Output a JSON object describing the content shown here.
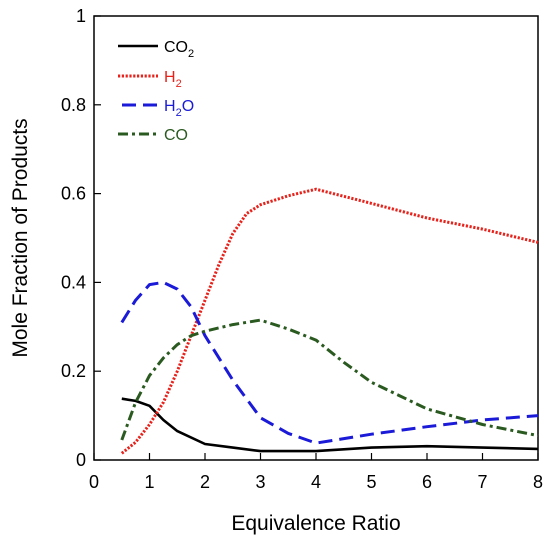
{
  "chart_data": {
    "type": "line",
    "title": "",
    "xlabel": "Equivalence Ratio",
    "ylabel": "Mole Fraction of Products",
    "xlim": [
      0,
      8
    ],
    "ylim": [
      0,
      1
    ],
    "xticks": [
      0,
      1,
      2,
      3,
      4,
      5,
      6,
      7,
      8
    ],
    "yticks": [
      0,
      0.2,
      0.4,
      0.6,
      0.8,
      1
    ],
    "ytick_labels": [
      "0",
      "0.2",
      "0.4",
      "0.6",
      "0.8",
      "1"
    ],
    "grid": false,
    "legend": "top-left",
    "series": [
      {
        "name": "CO2",
        "legend_main": "CO",
        "legend_sub": "2",
        "color": "#000000",
        "dash": "solid",
        "x": [
          0.5,
          0.75,
          1.0,
          1.25,
          1.5,
          2.0,
          2.5,
          3.0,
          3.5,
          4.0,
          5.0,
          6.0,
          7.0,
          8.0
        ],
        "y": [
          0.138,
          0.133,
          0.122,
          0.09,
          0.065,
          0.036,
          0.028,
          0.02,
          0.02,
          0.02,
          0.028,
          0.031,
          0.028,
          0.025
        ]
      },
      {
        "name": "H2",
        "legend_main": "H",
        "legend_sub": "2",
        "color": "#e8221b",
        "dash": "dotted",
        "x": [
          0.5,
          0.75,
          1.0,
          1.25,
          1.5,
          1.75,
          2.0,
          2.25,
          2.5,
          2.75,
          3.0,
          3.5,
          4.0,
          5.0,
          6.0,
          7.0,
          8.0
        ],
        "y": [
          0.015,
          0.04,
          0.08,
          0.13,
          0.2,
          0.28,
          0.36,
          0.44,
          0.51,
          0.555,
          0.575,
          0.595,
          0.61,
          0.578,
          0.545,
          0.52,
          0.49
        ]
      },
      {
        "name": "H2O",
        "legend_main": "H",
        "legend_sub": "2",
        "legend_tail": "O",
        "color": "#1a1ad8",
        "dash": "dashed",
        "x": [
          0.5,
          0.75,
          1.0,
          1.25,
          1.5,
          1.75,
          2.0,
          2.5,
          3.0,
          3.5,
          4.0,
          5.0,
          6.0,
          7.0,
          8.0
        ],
        "y": [
          0.31,
          0.36,
          0.395,
          0.4,
          0.385,
          0.345,
          0.28,
          0.18,
          0.095,
          0.06,
          0.038,
          0.058,
          0.075,
          0.09,
          0.1
        ]
      },
      {
        "name": "CO",
        "legend_main": "CO",
        "color": "#2a5a20",
        "dash": "dashdot",
        "x": [
          0.5,
          0.75,
          1.0,
          1.25,
          1.5,
          1.75,
          2.0,
          2.5,
          3.0,
          3.5,
          4.0,
          4.5,
          5.0,
          5.5,
          6.0,
          7.0,
          8.0
        ],
        "y": [
          0.045,
          0.13,
          0.19,
          0.23,
          0.26,
          0.28,
          0.29,
          0.305,
          0.315,
          0.295,
          0.27,
          0.22,
          0.175,
          0.145,
          0.115,
          0.08,
          0.055
        ]
      }
    ]
  }
}
